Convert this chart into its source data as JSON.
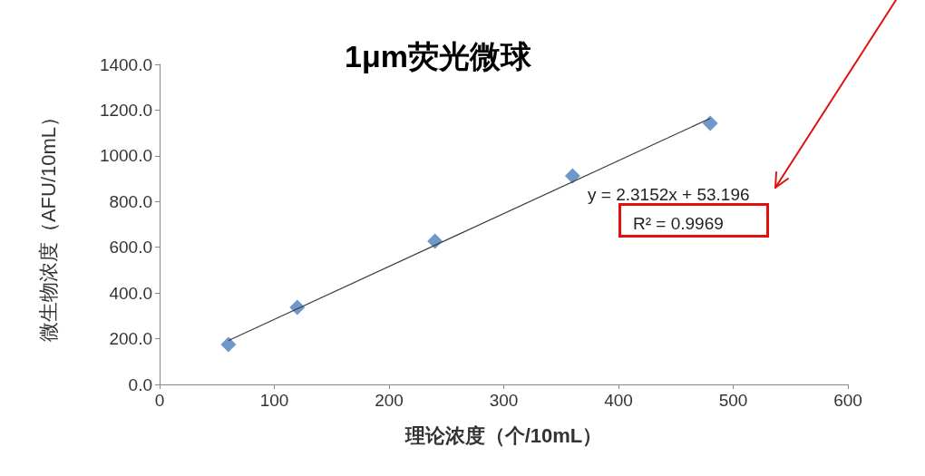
{
  "chart_data": {
    "type": "scatter",
    "title": "1μm荧光微球",
    "xlabel": "理论浓度（个/10mL）",
    "ylabel": "微生物浓度（AFU/10mL）",
    "annotations": [
      "y = 2.3152x + 53.196",
      "R² = 0.9969"
    ],
    "x": [
      60,
      120,
      240,
      360,
      480
    ],
    "series": [
      {
        "color": "#4a7ebb",
        "marker": "diamond",
        "values": [
          175,
          337,
          627,
          912,
          1142
        ]
      },
      {
        "type": "line",
        "color": "#404040",
        "marker": "none",
        "x": [
          60,
          480
        ],
        "values": [
          192,
          1164
        ]
      }
    ],
    "xlim": [
      0,
      600
    ],
    "xticks": [
      0,
      100,
      200,
      300,
      400,
      500,
      600
    ],
    "ylim": [
      0,
      1400
    ],
    "yticks": [
      {
        "value": 0,
        "label": "0.0"
      },
      {
        "value": 200,
        "label": "200.0"
      },
      {
        "value": 400,
        "label": "400.0"
      },
      {
        "value": 600,
        "label": "600.0"
      },
      {
        "value": 800,
        "label": "800.0"
      },
      {
        "value": 1000,
        "label": "1000.0"
      },
      {
        "value": 1200,
        "label": "1200.0"
      },
      {
        "value": 1400,
        "label": "1400.0"
      }
    ],
    "grid": false
  }
}
